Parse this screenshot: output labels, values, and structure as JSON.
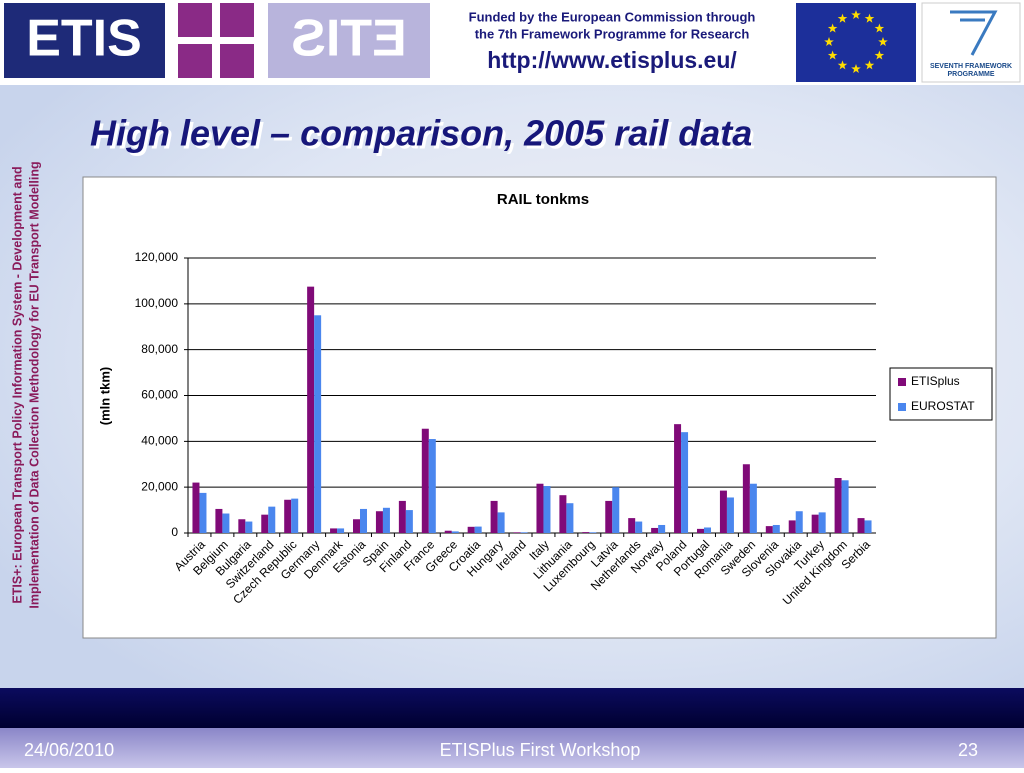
{
  "header": {
    "logo_text": "ETIS",
    "funding_line_1": "Funded by the European Commission through",
    "funding_line_2": "the  7th Framework  Programme  for  Research",
    "url": "http://www.etisplus.eu/",
    "fp7_line_1": "SEVENTH FRAMEWORK",
    "fp7_line_2": "PROGRAMME"
  },
  "title": "High level – comparison, 2005 rail data",
  "side_text": [
    "ETIS+:  European Transport Policy Information System  -  Development and",
    "Implementation of Data Collection Methodology for EU Transport Modelling"
  ],
  "footer": {
    "date": "24/06/2010",
    "event": "ETISPlus First Workshop",
    "page": "23"
  },
  "chart_data": {
    "type": "bar",
    "title": "RAIL tonkms",
    "y_label": "(mln tkm)",
    "categories": [
      "Austria",
      "Belgium",
      "Bulgaria",
      "Switzerland",
      "Czech Republic",
      "Germany",
      "Denmark",
      "Estonia",
      "Spain",
      "Finland",
      "France",
      "Greece",
      "Croatia",
      "Hungary",
      "Ireland",
      "Italy",
      "Lithuania",
      "Luxembourg",
      "Latvia",
      "Netherlands",
      "Norway",
      "Poland",
      "Portugal",
      "Romania",
      "Sweden",
      "Slovenia",
      "Slovakia",
      "Turkey",
      "United Kingdom",
      "Serbia"
    ],
    "series": [
      {
        "name": "ETISplus",
        "color": "#800a78",
        "values": [
          22000,
          10500,
          6000,
          8000,
          14500,
          107500,
          2000,
          6000,
          9500,
          14000,
          45500,
          1000,
          2700,
          14000,
          300,
          21500,
          16500,
          400,
          14000,
          6500,
          2200,
          47500,
          1800,
          18500,
          30000,
          3000,
          5500,
          8000,
          24000,
          6500
        ]
      },
      {
        "name": "EUROSTAT",
        "color": "#4a86ee",
        "values": [
          17500,
          8500,
          5000,
          11500,
          15000,
          95000,
          2000,
          10500,
          11000,
          10000,
          41000,
          700,
          2800,
          9000,
          300,
          20500,
          13000,
          300,
          20000,
          5000,
          3500,
          44000,
          2400,
          15500,
          21500,
          3500,
          9500,
          9000,
          23000,
          5500
        ]
      }
    ],
    "ylim": [
      0,
      120000
    ],
    "yticks": [
      0,
      {
        "value": 20000,
        "label": "20,000"
      },
      {
        "value": 40000,
        "label": "40,000"
      },
      {
        "value": 60000,
        "label": "60,000"
      },
      {
        "value": 80000,
        "label": "80,000"
      },
      {
        "value": 100000,
        "label": "100,000"
      },
      {
        "value": 120000,
        "label": "120,000"
      }
    ],
    "grid": true,
    "legend": "right"
  }
}
